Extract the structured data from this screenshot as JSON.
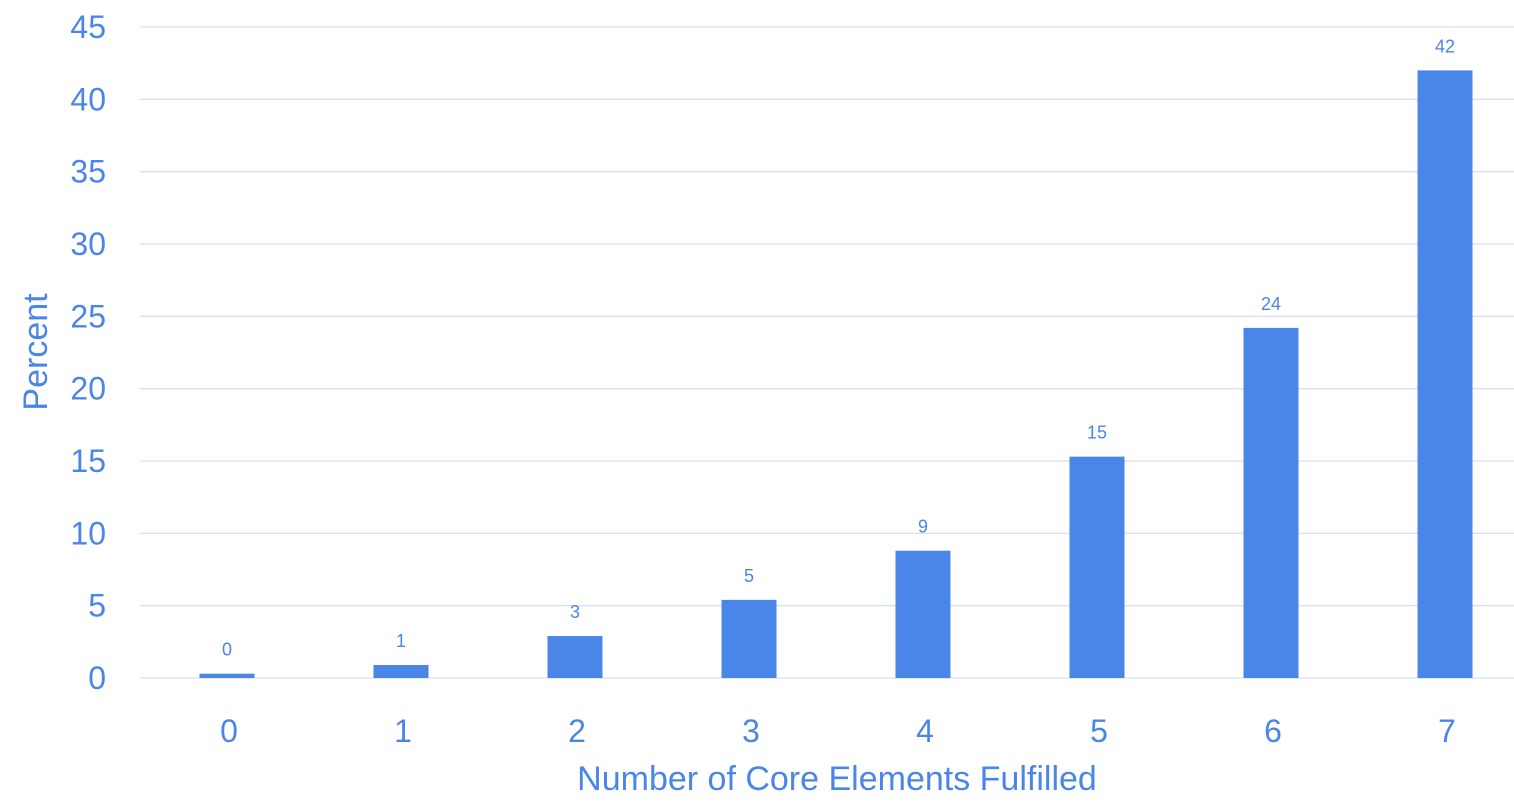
{
  "chart_data": {
    "type": "bar",
    "categories": [
      "0",
      "1",
      "2",
      "3",
      "4",
      "5",
      "6",
      "7"
    ],
    "values": [
      0.3,
      0.9,
      2.9,
      5.4,
      8.8,
      15.3,
      24.2,
      42.0
    ],
    "data_labels": [
      "0",
      "1",
      "3",
      "5",
      "9",
      "15",
      "24",
      "42"
    ],
    "title": "",
    "xlabel": "Number of Core Elements Fulfilled",
    "ylabel": "Percent",
    "ylim": [
      0,
      45
    ],
    "yticks": [
      "0",
      "5",
      "10",
      "15",
      "20",
      "25",
      "30",
      "35",
      "40",
      "45"
    ],
    "grid": true,
    "legend": "none",
    "colors": {
      "bar": "#4a86e8",
      "text": "#4a86e8",
      "grid": "#d6e1f5"
    }
  }
}
